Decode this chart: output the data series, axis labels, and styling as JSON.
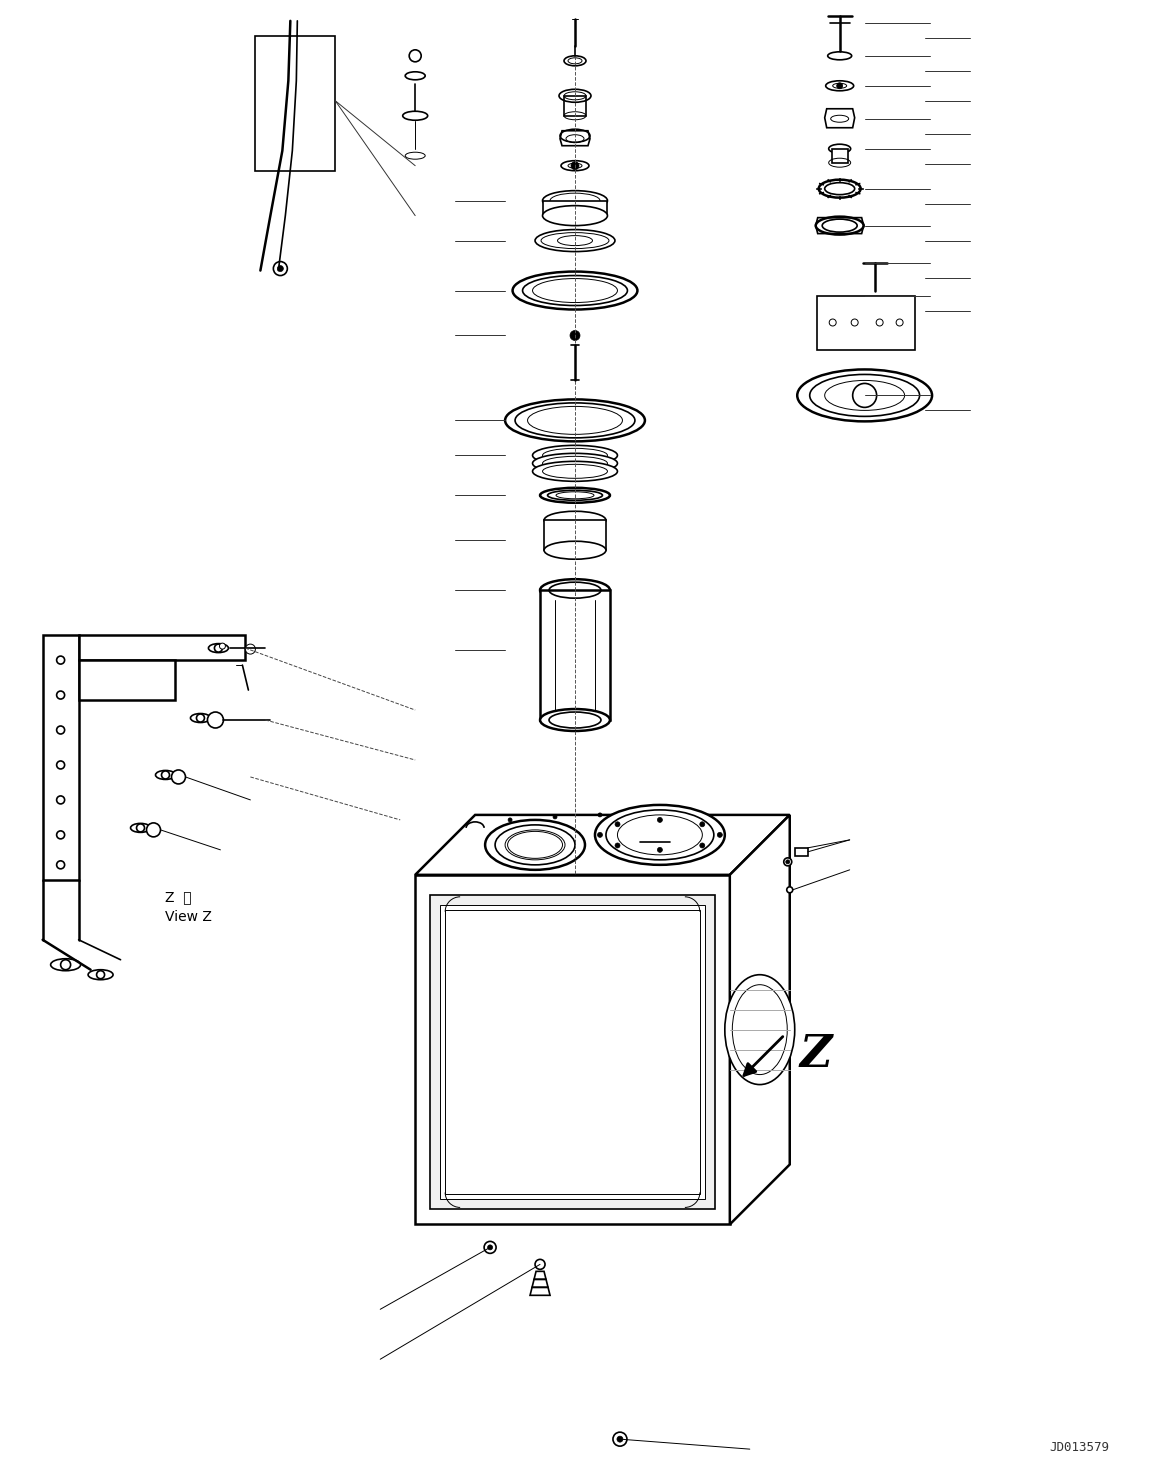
{
  "bg_color": "#ffffff",
  "line_color": "#000000",
  "fig_width": 11.51,
  "fig_height": 14.69,
  "dpi": 100,
  "watermark": "JD013579",
  "view_label_jp": "Z  視",
  "view_label_en": "View Z",
  "z_label": "Z",
  "lw_main": 1.2,
  "lw_thin": 0.7,
  "lw_thick": 1.8
}
